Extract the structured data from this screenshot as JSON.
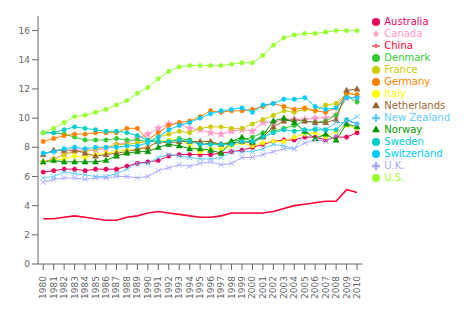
{
  "chart_data": {
    "type": "line",
    "x": [
      1980,
      1981,
      1982,
      1983,
      1984,
      1985,
      1986,
      1987,
      1988,
      1989,
      1990,
      1991,
      1992,
      1993,
      1994,
      1995,
      1996,
      1997,
      1998,
      1999,
      2000,
      2001,
      2002,
      2003,
      2004,
      2005,
      2006,
      2007,
      2008,
      2009,
      2010
    ],
    "xlim": [
      1979.5,
      2010.5
    ],
    "xticks": [
      1980,
      1981,
      1982,
      1983,
      1984,
      1985,
      1986,
      1987,
      1988,
      1989,
      1990,
      1991,
      1992,
      1993,
      1994,
      1995,
      1996,
      1997,
      1998,
      1999,
      2000,
      2001,
      2002,
      2003,
      2004,
      2005,
      2006,
      2007,
      2008,
      2009,
      2010
    ],
    "ylim": [
      0,
      17
    ],
    "yticks": [
      0,
      2,
      4,
      6,
      8,
      10,
      12,
      14,
      16
    ],
    "grid": false,
    "legend": "right",
    "series": [
      {
        "name": "Australia",
        "color": "#e8005a",
        "marker": "circle",
        "values": [
          6.3,
          6.4,
          6.5,
          6.5,
          6.4,
          6.5,
          6.5,
          6.5,
          6.7,
          6.9,
          7.0,
          7.1,
          7.4,
          7.5,
          7.5,
          7.5,
          7.5,
          7.6,
          7.7,
          7.8,
          8.0,
          8.2,
          8.4,
          8.5,
          8.5,
          8.7,
          8.7,
          8.5,
          8.7,
          8.7,
          9.0
        ]
      },
      {
        "name": "Canada",
        "color": "#ff99cc",
        "marker": "star",
        "values": [
          7.0,
          7.2,
          7.5,
          7.8,
          7.8,
          7.8,
          7.9,
          8.2,
          8.3,
          8.6,
          8.9,
          9.3,
          9.6,
          9.6,
          9.3,
          9.2,
          9.0,
          8.9,
          9.1,
          9.2,
          9.1,
          9.7,
          9.7,
          9.9,
          9.9,
          9.9,
          10.0,
          10.0,
          10.2,
          11.4,
          11.4
        ]
      },
      {
        "name": "China",
        "color": "#ff0033",
        "marker": "none",
        "values": [
          3.1,
          3.1,
          3.2,
          3.3,
          3.2,
          3.1,
          3.0,
          3.0,
          3.2,
          3.3,
          3.5,
          3.6,
          3.5,
          3.4,
          3.3,
          3.2,
          3.2,
          3.3,
          3.5,
          3.5,
          3.5,
          3.5,
          3.6,
          3.8,
          4.0,
          4.1,
          4.2,
          4.3,
          4.3,
          5.1,
          4.9
        ]
      },
      {
        "name": "Denmark",
        "color": "#33cc33",
        "marker": "circle",
        "values": [
          9.0,
          9.0,
          8.9,
          8.7,
          8.5,
          8.5,
          8.5,
          8.6,
          8.5,
          8.5,
          8.4,
          8.4,
          8.4,
          8.6,
          8.5,
          8.2,
          8.3,
          8.2,
          8.4,
          8.5,
          8.7,
          9.0,
          9.1,
          9.3,
          9.5,
          9.8,
          9.7,
          9.8,
          10.2,
          11.5,
          11.1
        ]
      },
      {
        "name": "France",
        "color": "#cccc00",
        "marker": "circle",
        "values": [
          7.0,
          7.2,
          7.5,
          7.7,
          7.7,
          7.9,
          8.0,
          8.2,
          8.2,
          8.3,
          8.4,
          8.7,
          8.9,
          9.1,
          9.0,
          9.3,
          9.4,
          9.4,
          9.3,
          9.3,
          9.6,
          9.9,
          10.2,
          10.5,
          10.4,
          10.6,
          10.5,
          10.9,
          11.0,
          11.7,
          11.6
        ]
      },
      {
        "name": "Germany",
        "color": "#ff8000",
        "marker": "circle",
        "values": [
          8.4,
          8.6,
          8.8,
          8.9,
          8.9,
          9.0,
          9.0,
          9.0,
          9.3,
          9.3,
          8.5,
          9.0,
          9.5,
          9.7,
          9.8,
          10.1,
          10.5,
          10.4,
          10.5,
          10.5,
          10.6,
          10.8,
          11.0,
          10.8,
          10.6,
          10.7,
          10.5,
          10.4,
          10.7,
          11.7,
          11.6
        ]
      },
      {
        "name": "Italy",
        "color": "#ffff00",
        "marker": "circle",
        "values": [
          7.0,
          7.1,
          7.2,
          7.4,
          7.3,
          7.5,
          7.6,
          7.7,
          7.8,
          7.8,
          8.0,
          8.4,
          8.5,
          8.5,
          8.2,
          7.7,
          7.9,
          7.9,
          8.1,
          8.3,
          8.1,
          8.3,
          8.4,
          8.4,
          8.7,
          8.9,
          9.0,
          8.7,
          9.1,
          9.5,
          9.3
        ]
      },
      {
        "name": "Netherlands",
        "color": "#996633",
        "marker": "triangle",
        "values": [
          7.5,
          7.8,
          7.8,
          7.8,
          7.6,
          7.4,
          7.5,
          7.6,
          7.7,
          7.9,
          8.0,
          8.4,
          8.3,
          8.4,
          8.4,
          8.4,
          8.4,
          8.2,
          8.3,
          8.4,
          8.3,
          8.7,
          9.4,
          9.8,
          9.9,
          9.8,
          9.7,
          9.7,
          9.9,
          11.9,
          12.0
        ]
      },
      {
        "name": "New Zealand",
        "color": "#66ccff",
        "marker": "x",
        "values": [
          5.9,
          6.0,
          6.3,
          6.2,
          6.1,
          6.0,
          6.0,
          6.2,
          6.5,
          6.9,
          6.9,
          7.3,
          7.5,
          7.4,
          7.3,
          7.2,
          7.2,
          7.3,
          7.7,
          7.7,
          7.7,
          7.9,
          8.2,
          8.1,
          7.9,
          8.9,
          9.4,
          9.2,
          9.7,
          9.7,
          10.1
        ]
      },
      {
        "name": "Norway",
        "color": "#009900",
        "marker": "triangle",
        "values": [
          7.0,
          7.1,
          7.0,
          7.0,
          7.0,
          7.0,
          7.1,
          7.4,
          7.6,
          7.7,
          7.7,
          8.0,
          8.2,
          8.1,
          7.9,
          7.9,
          7.8,
          7.6,
          8.4,
          8.7,
          8.4,
          8.8,
          9.8,
          10.0,
          9.7,
          9.1,
          8.6,
          8.9,
          8.5,
          9.6,
          9.4
        ]
      },
      {
        "name": "Sweden",
        "color": "#00cccc",
        "marker": "circle",
        "values": [
          9.0,
          9.0,
          9.2,
          9.4,
          9.3,
          9.2,
          9.1,
          9.1,
          9.0,
          8.8,
          8.5,
          8.4,
          8.4,
          8.5,
          8.4,
          8.2,
          8.2,
          8.2,
          8.2,
          8.4,
          8.4,
          8.7,
          9.0,
          9.2,
          9.1,
          9.2,
          9.2,
          9.2,
          9.2,
          9.9,
          9.6
        ]
      },
      {
        "name": "Switzerland",
        "color": "#00ccff",
        "marker": "circle",
        "values": [
          7.6,
          7.7,
          7.9,
          8.0,
          7.9,
          8.0,
          8.0,
          8.0,
          8.1,
          8.1,
          8.3,
          8.7,
          9.2,
          9.5,
          9.7,
          10.0,
          10.3,
          10.5,
          10.6,
          10.7,
          10.4,
          10.9,
          11.0,
          11.3,
          11.3,
          11.4,
          10.8,
          10.6,
          10.7,
          11.4,
          11.4
        ]
      },
      {
        "name": "U.K.",
        "color": "#aaaaff",
        "marker": "x",
        "values": [
          5.6,
          5.8,
          5.9,
          5.9,
          5.8,
          5.9,
          5.9,
          6.0,
          6.0,
          5.9,
          6.0,
          6.4,
          6.6,
          6.8,
          6.7,
          6.9,
          7.0,
          6.8,
          6.9,
          7.3,
          7.3,
          7.5,
          7.7,
          7.9,
          7.9,
          8.3,
          8.5,
          8.4,
          8.8,
          9.8,
          9.6
        ]
      },
      {
        "name": "U.S.",
        "color": "#99ff33",
        "marker": "circle",
        "values": [
          9.0,
          9.3,
          9.7,
          10.1,
          10.2,
          10.4,
          10.6,
          10.9,
          11.2,
          11.7,
          12.1,
          12.7,
          13.2,
          13.5,
          13.6,
          13.6,
          13.6,
          13.6,
          13.7,
          13.8,
          13.8,
          14.3,
          15.0,
          15.5,
          15.7,
          15.8,
          15.8,
          15.9,
          16.0,
          16.0,
          16.0
        ]
      }
    ]
  }
}
